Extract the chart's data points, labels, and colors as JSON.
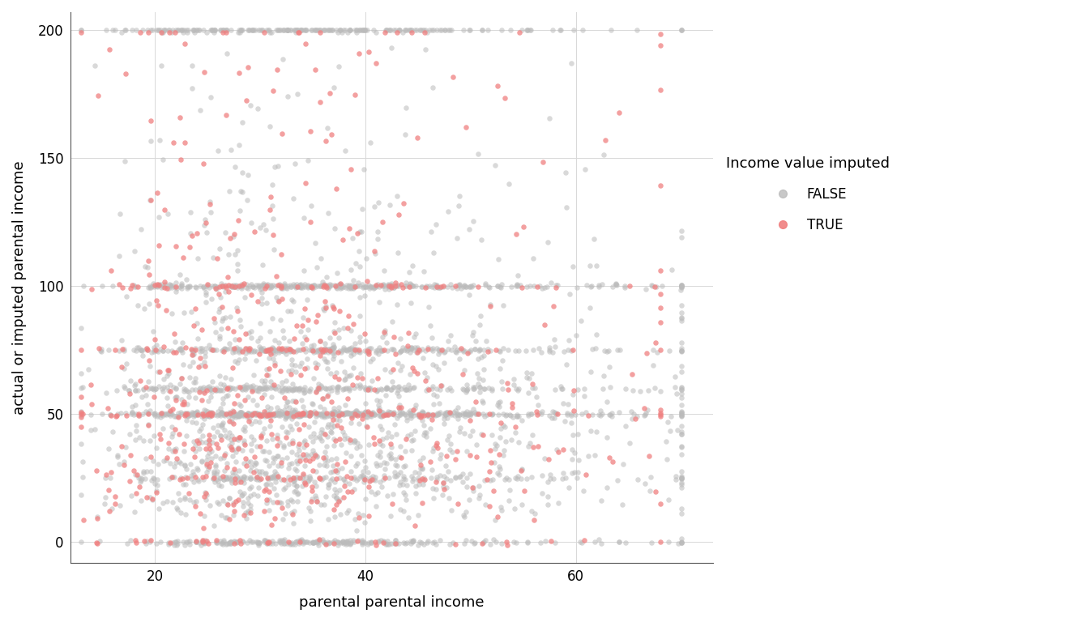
{
  "title": "",
  "xlabel": "parental parental income",
  "ylabel": "actual or imputed parental income",
  "xlim": [
    12,
    73
  ],
  "ylim": [
    -8,
    207
  ],
  "xticks": [
    20,
    40,
    60
  ],
  "yticks": [
    0,
    50,
    100,
    150,
    200
  ],
  "false_color": "#BBBBBB",
  "true_color": "#F08080",
  "false_alpha": 0.55,
  "true_alpha": 0.75,
  "marker_size": 22,
  "background_color": "#FFFFFF",
  "panel_background": "#FFFFFF",
  "grid_color": "#D8D8D8",
  "legend_title": "Income value imputed",
  "legend_labels": [
    "FALSE",
    "TRUE"
  ],
  "seed": 123,
  "n_false": 3200,
  "n_true": 700,
  "xlabel_fontsize": 13,
  "ylabel_fontsize": 13,
  "tick_fontsize": 12,
  "legend_title_fontsize": 13,
  "legend_fontsize": 12
}
